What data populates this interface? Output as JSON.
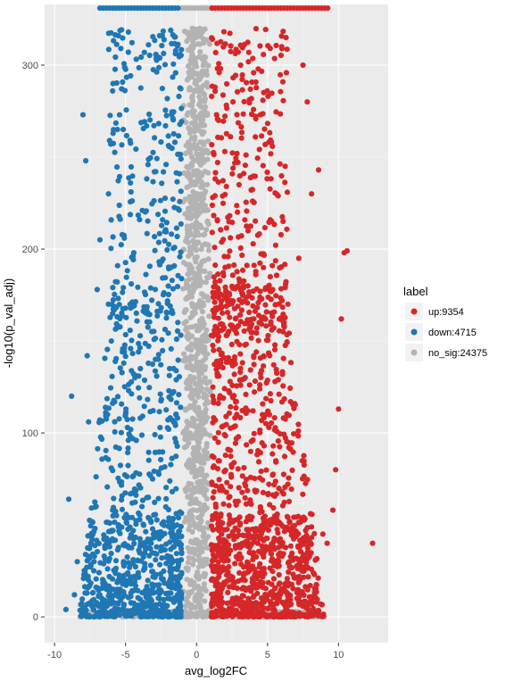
{
  "chart_data": {
    "type": "scatter",
    "title": "",
    "xlabel": "avg_log2FC",
    "ylabel": "-log10(p_val_adj)",
    "xlim": [
      -10.7,
      13.5
    ],
    "ylim": [
      -14,
      333
    ],
    "x_ticks": [
      -10,
      -5,
      0,
      5,
      10
    ],
    "x_tick_labels": [
      "-10",
      "-5",
      "0",
      "5",
      "10"
    ],
    "y_ticks": [
      0,
      100,
      200,
      300
    ],
    "y_tick_labels": [
      "0",
      "100",
      "200",
      "300"
    ],
    "grid": true,
    "legend_position": "right",
    "legend_title": "label",
    "series": [
      {
        "name": "up:9354",
        "color": "#d62728",
        "count": 9354
      },
      {
        "name": "down:4715",
        "color": "#1f77b4",
        "count": 4715
      },
      {
        "name": "no_sig:24375",
        "color": "#b3b3b3",
        "count": 24375
      }
    ],
    "sample_points": {
      "up": [
        [
          12.4,
          40
        ],
        [
          10.6,
          199
        ],
        [
          10.4,
          198
        ],
        [
          10.2,
          162
        ],
        [
          8.6,
          243
        ],
        [
          10.0,
          113
        ],
        [
          9.8,
          80
        ],
        [
          9.6,
          58
        ],
        [
          8.9,
          45
        ],
        [
          7.8,
          280
        ],
        [
          7.5,
          300
        ],
        [
          6.3,
          315
        ],
        [
          6.0,
          310
        ],
        [
          8.1,
          230
        ],
        [
          9.2,
          40
        ],
        [
          7.2,
          195
        ]
      ],
      "down": [
        [
          -9.2,
          4
        ],
        [
          -8.8,
          120
        ],
        [
          -8.0,
          273
        ],
        [
          -7.8,
          248
        ],
        [
          -7.7,
          142
        ],
        [
          -7.6,
          106
        ],
        [
          -9.0,
          64
        ],
        [
          -8.4,
          30
        ],
        [
          -7.0,
          178
        ],
        [
          -6.8,
          205
        ],
        [
          -6.2,
          230
        ],
        [
          -5.5,
          316
        ],
        [
          -4.8,
          318
        ],
        [
          -6.0,
          150
        ],
        [
          -7.3,
          45
        ],
        [
          -8.6,
          12
        ]
      ],
      "no_sig": [
        [
          -8.2,
          0
        ],
        [
          -6.8,
          0
        ],
        [
          -5.2,
          0
        ],
        [
          -3.1,
          0
        ],
        [
          3.2,
          0
        ],
        [
          5.8,
          0
        ],
        [
          7.3,
          0
        ],
        [
          8.6,
          0
        ],
        [
          9.0,
          0
        ],
        [
          -0.3,
          320
        ],
        [
          0.2,
          318
        ],
        [
          -0.6,
          210
        ],
        [
          0.5,
          150
        ],
        [
          0.0,
          90
        ]
      ]
    }
  }
}
